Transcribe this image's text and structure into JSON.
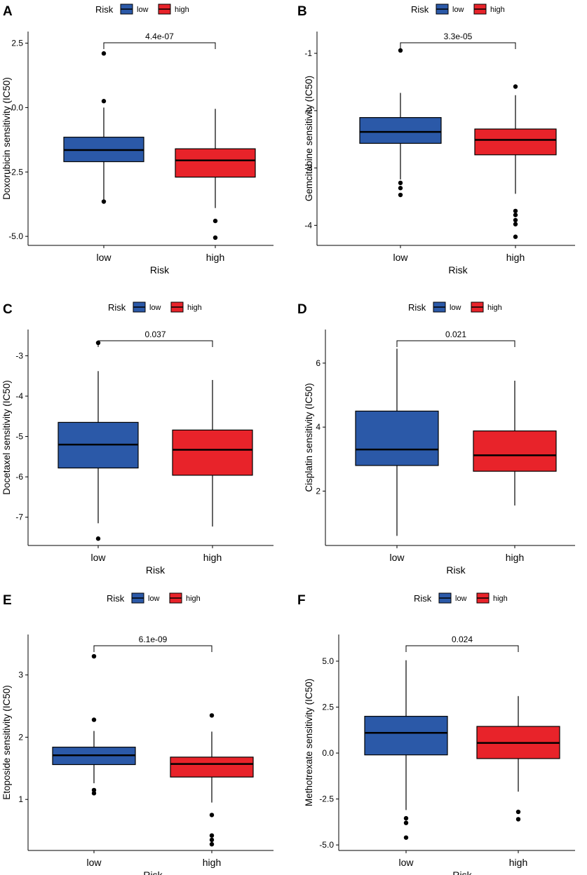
{
  "colors": {
    "low": "#2B59A8",
    "high": "#E8232A",
    "axis": "#000000"
  },
  "chart_data": [
    {
      "panel": "A",
      "type": "boxplot",
      "ylabel": "Doxorubicin sensitivity (IC50)",
      "xlabel": "Risk",
      "legend": {
        "title": "Risk",
        "items": [
          "low",
          "high"
        ]
      },
      "categories": [
        "low",
        "high"
      ],
      "ylim": [
        -5.35,
        2.95
      ],
      "yticks": [
        2.5,
        0.0,
        -2.5,
        -5.0
      ],
      "ytick_labels": [
        "2.5",
        "0.0",
        "-2.5",
        "-5.0"
      ],
      "boxes": [
        {
          "group": "low",
          "min": -3.6,
          "q1": -2.1,
          "median": -1.65,
          "q3": -1.15,
          "max": 0.0,
          "outliers": [
            2.1,
            0.25,
            -3.65
          ]
        },
        {
          "group": "high",
          "min": -3.9,
          "q1": -2.7,
          "median": -2.05,
          "q3": -1.6,
          "max": -0.05,
          "outliers": [
            -4.4,
            -5.05
          ]
        }
      ],
      "pvalue": "4.4e-07"
    },
    {
      "panel": "B",
      "type": "boxplot",
      "ylabel": "Gemcitabine sensitivity (IC50)",
      "xlabel": "Risk",
      "legend": {
        "title": "Risk",
        "items": [
          "low",
          "high"
        ]
      },
      "categories": [
        "low",
        "high"
      ],
      "ylim": [
        -4.35,
        -0.62
      ],
      "yticks": [
        -1,
        -2,
        -3,
        -4
      ],
      "ytick_labels": [
        "-1",
        "-2",
        "-3",
        "-4"
      ],
      "boxes": [
        {
          "group": "low",
          "min": -3.2,
          "q1": -2.57,
          "median": -2.37,
          "q3": -2.12,
          "max": -1.69,
          "outliers": [
            -0.95,
            -3.26,
            -3.35,
            -3.47
          ]
        },
        {
          "group": "high",
          "min": -3.45,
          "q1": -2.77,
          "median": -2.51,
          "q3": -2.32,
          "max": -1.73,
          "outliers": [
            -1.58,
            -3.75,
            -3.82,
            -3.91,
            -3.98,
            -4.2
          ]
        }
      ],
      "pvalue": "3.3e-05"
    },
    {
      "panel": "C",
      "type": "boxplot",
      "ylabel": "Docetaxel sensitivity (IC50)",
      "xlabel": "Risk",
      "legend": {
        "title": "Risk",
        "items": [
          "low",
          "high"
        ]
      },
      "categories": [
        "low",
        "high"
      ],
      "ylim": [
        -7.7,
        -2.35
      ],
      "yticks": [
        -3,
        -4,
        -5,
        -6,
        -7
      ],
      "ytick_labels": [
        "-3",
        "-4",
        "-5",
        "-6",
        "-7"
      ],
      "boxes": [
        {
          "group": "low",
          "min": -7.15,
          "q1": -5.78,
          "median": -5.2,
          "q3": -4.65,
          "max": -3.38,
          "outliers": [
            -2.68,
            -7.53
          ]
        },
        {
          "group": "high",
          "min": -7.23,
          "q1": -5.96,
          "median": -5.33,
          "q3": -4.84,
          "max": -3.6,
          "outliers": []
        }
      ],
      "pvalue": "0.037"
    },
    {
      "panel": "D",
      "type": "boxplot",
      "ylabel": "Cisplatin sensitivity (IC50)",
      "xlabel": "Risk",
      "legend": {
        "title": "Risk",
        "items": [
          "low",
          "high"
        ]
      },
      "categories": [
        "low",
        "high"
      ],
      "ylim": [
        0.3,
        7.05
      ],
      "yticks": [
        6,
        4,
        2
      ],
      "ytick_labels": [
        "6",
        "4",
        "2"
      ],
      "boxes": [
        {
          "group": "low",
          "min": 0.6,
          "q1": 2.8,
          "median": 3.3,
          "q3": 4.5,
          "max": 6.45,
          "outliers": []
        },
        {
          "group": "high",
          "min": 1.55,
          "q1": 2.62,
          "median": 3.12,
          "q3": 3.88,
          "max": 5.45,
          "outliers": []
        }
      ],
      "pvalue": "0.021"
    },
    {
      "panel": "E",
      "type": "boxplot",
      "ylabel": "Etoposide sensitivity (IC50)",
      "xlabel": "Risk",
      "legend": {
        "title": "Risk",
        "items": [
          "low",
          "high"
        ]
      },
      "categories": [
        "low",
        "high"
      ],
      "ylim": [
        0.18,
        3.65
      ],
      "yticks": [
        3,
        2,
        1
      ],
      "ytick_labels": [
        "3",
        "2",
        "1"
      ],
      "boxes": [
        {
          "group": "low",
          "min": 1.26,
          "q1": 1.56,
          "median": 1.71,
          "q3": 1.84,
          "max": 2.1,
          "outliers": [
            3.3,
            2.28,
            1.15,
            1.1
          ]
        },
        {
          "group": "high",
          "min": 0.95,
          "q1": 1.36,
          "median": 1.57,
          "q3": 1.68,
          "max": 2.09,
          "outliers": [
            2.35,
            0.75,
            0.42,
            0.35,
            0.28
          ]
        }
      ],
      "pvalue": "6.1e-09"
    },
    {
      "panel": "F",
      "type": "boxplot",
      "ylabel": "Methotrexate sensitivity (IC50)",
      "xlabel": "Risk",
      "legend": {
        "title": "Risk",
        "items": [
          "low",
          "high"
        ]
      },
      "categories": [
        "low",
        "high"
      ],
      "ylim": [
        -5.3,
        6.45
      ],
      "yticks": [
        5.0,
        2.5,
        0.0,
        -2.5,
        -5.0
      ],
      "ytick_labels": [
        "5.0",
        "2.5",
        "0.0",
        "-2.5",
        "-5.0"
      ],
      "boxes": [
        {
          "group": "low",
          "min": -3.1,
          "q1": -0.1,
          "median": 1.1,
          "q3": 2.0,
          "max": 5.05,
          "outliers": [
            -3.55,
            -3.8,
            -4.6
          ]
        },
        {
          "group": "high",
          "min": -2.1,
          "q1": -0.3,
          "median": 0.55,
          "q3": 1.45,
          "max": 3.1,
          "outliers": [
            -3.2,
            -3.6
          ]
        }
      ],
      "pvalue": "0.024"
    }
  ]
}
